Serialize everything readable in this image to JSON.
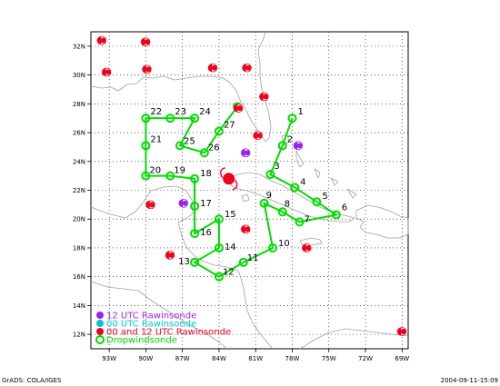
{
  "axes": {
    "lat_labels": [
      "12N",
      "14N",
      "16N",
      "18N",
      "20N",
      "22N",
      "24N",
      "26N",
      "28N",
      "30N",
      "32N"
    ],
    "lon_labels": [
      "93W",
      "90W",
      "87W",
      "84W",
      "81W",
      "78W",
      "75W",
      "72W",
      "69W"
    ]
  },
  "track_points": [
    {
      "label": "1",
      "lon": -78.0,
      "lat": 27.0
    },
    {
      "label": "2",
      "lon": -78.8,
      "lat": 25.1
    },
    {
      "label": "3",
      "lon": -79.8,
      "lat": 23.1
    },
    {
      "label": "4",
      "lon": -77.8,
      "lat": 22.2
    },
    {
      "label": "5",
      "lon": -76.0,
      "lat": 21.2
    },
    {
      "label": "6",
      "lon": -74.4,
      "lat": 20.3
    },
    {
      "label": "7",
      "lon": -77.4,
      "lat": 19.8
    },
    {
      "label": "8",
      "lon": -78.8,
      "lat": 20.5
    },
    {
      "label": "9",
      "lon": -80.3,
      "lat": 21.1
    },
    {
      "label": "10",
      "lon": -79.6,
      "lat": 18.0
    },
    {
      "label": "11",
      "lon": -82.0,
      "lat": 17.0
    },
    {
      "label": "12",
      "lon": -84.0,
      "lat": 16.0
    },
    {
      "label": "13",
      "lon": -86.0,
      "lat": 17.0
    },
    {
      "label": "14",
      "lon": -84.0,
      "lat": 18.0
    },
    {
      "label": "15",
      "lon": -84.0,
      "lat": 20.0
    },
    {
      "label": "16",
      "lon": -86.0,
      "lat": 19.0
    },
    {
      "label": "17",
      "lon": -86.0,
      "lat": 20.9
    },
    {
      "label": "18",
      "lon": -86.0,
      "lat": 22.8
    },
    {
      "label": "19",
      "lon": -88.0,
      "lat": 23.0
    },
    {
      "label": "20",
      "lon": -90.0,
      "lat": 23.0
    },
    {
      "label": "21",
      "lon": -90.0,
      "lat": 25.1
    },
    {
      "label": "22",
      "lon": -90.0,
      "lat": 27.0
    },
    {
      "label": "23",
      "lon": -88.0,
      "lat": 27.0
    },
    {
      "label": "24",
      "lon": -86.0,
      "lat": 27.0
    },
    {
      "label": "25",
      "lon": -87.2,
      "lat": 25.1
    },
    {
      "label": "26",
      "lon": -85.2,
      "lat": 24.6
    },
    {
      "label": "27",
      "lon": -84.0,
      "lat": 26.1
    },
    {
      "label": "",
      "lon": -82.5,
      "lat": 27.8
    }
  ],
  "rawinsondes_00_12": [
    {
      "lon": -93.6,
      "lat": 32.4
    },
    {
      "lon": -90.0,
      "lat": 32.3
    },
    {
      "lon": -93.2,
      "lat": 30.2
    },
    {
      "lon": -89.9,
      "lat": 30.4
    },
    {
      "lon": -84.5,
      "lat": 30.5
    },
    {
      "lon": -81.7,
      "lat": 30.5
    },
    {
      "lon": -80.3,
      "lat": 28.5
    },
    {
      "lon": -82.4,
      "lat": 27.7
    },
    {
      "lon": -80.8,
      "lat": 25.8
    },
    {
      "lon": -81.8,
      "lat": 19.3
    },
    {
      "lon": -76.8,
      "lat": 18.0
    },
    {
      "lon": -89.6,
      "lat": 21.0
    },
    {
      "lon": -88.0,
      "lat": 17.5
    },
    {
      "lon": -69.0,
      "lat": 12.2
    }
  ],
  "rawinsondes_12": [
    {
      "lon": -81.8,
      "lat": 24.6
    },
    {
      "lon": -77.5,
      "lat": 25.1
    },
    {
      "lon": -86.9,
      "lat": 21.1
    }
  ],
  "storm_center": {
    "lon": -83.2,
    "lat": 22.8
  },
  "legend": [
    {
      "label": "12 UTC Rawinsonde",
      "color": "#a020f0",
      "marker": "dot"
    },
    {
      "label": "00 UTC Rawinsonde",
      "color": "#00c8c8",
      "marker": "dot"
    },
    {
      "label": "00 and 12 UTC Rawinsonde",
      "color": "#f0001e",
      "marker": "dot"
    },
    {
      "label": "Dropwindsonde",
      "color": "#00dc00",
      "marker": "ring"
    }
  ],
  "colors": {
    "track": "#00dc00",
    "raob_00_12": "#f0001e",
    "raob_12": "#a020f0",
    "coast": "#a0a0a0",
    "grid": "#000000"
  },
  "footer": {
    "left": "GrADS: COLA/IGES",
    "right": "2004-09-11-15:09"
  }
}
